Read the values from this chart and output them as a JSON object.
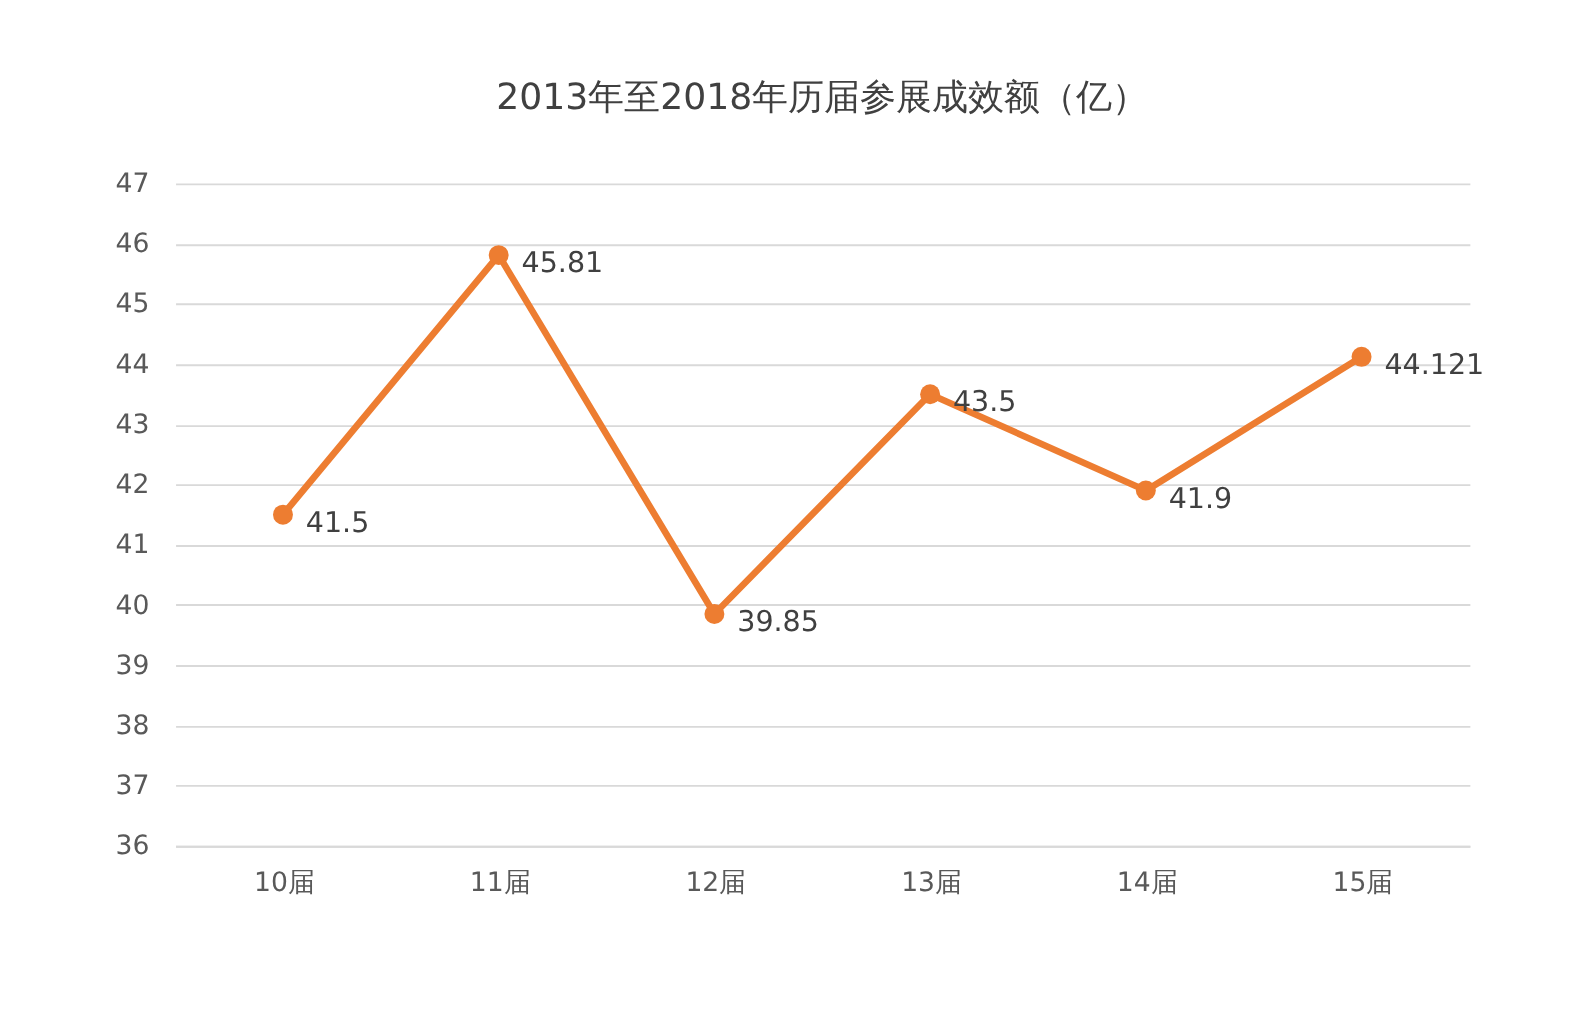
{
  "chart_data": {
    "type": "line",
    "title": "2013年至2018年历届参展成效额（亿）",
    "categories": [
      "10届",
      "11届",
      "12届",
      "13届",
      "14届",
      "15届"
    ],
    "series": [
      {
        "color": "#ed7d31",
        "values": [
          41.5,
          45.81,
          39.85,
          43.5,
          41.9,
          44.121
        ]
      }
    ],
    "ylim": [
      36,
      47
    ],
    "yticks": [
      36,
      37,
      38,
      39,
      40,
      41,
      42,
      43,
      44,
      45,
      46,
      47
    ],
    "grid": "y",
    "marker": "circle",
    "line_style": "solid",
    "data_labels": true
  }
}
